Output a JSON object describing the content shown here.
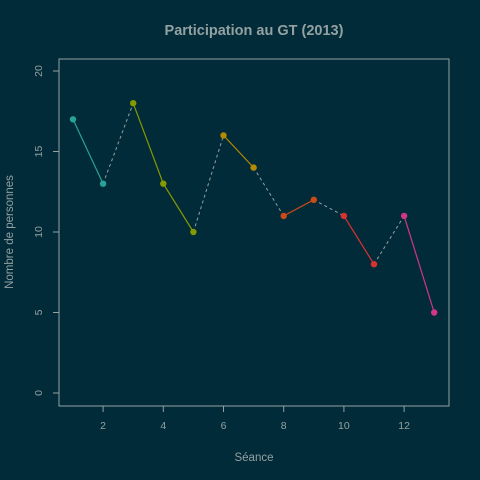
{
  "chart_data": {
    "type": "line",
    "title": "Participation au GT (2013)",
    "xlabel": "Séance",
    "ylabel": "Nombre de personnes",
    "xlim": [
      0.5,
      13.5
    ],
    "ylim": [
      0,
      21
    ],
    "xticks": [
      2,
      4,
      6,
      8,
      10,
      12
    ],
    "yticks": [
      0,
      5,
      10,
      15,
      20
    ],
    "x": [
      1,
      2,
      3,
      4,
      5,
      6,
      7,
      8,
      9,
      10,
      11,
      12,
      13
    ],
    "series": [
      {
        "x": [
          1,
          2
        ],
        "values": [
          17,
          13
        ],
        "color": "#2aa198"
      },
      {
        "x": [
          3,
          4,
          5
        ],
        "values": [
          18,
          13,
          10
        ],
        "color": "#859900"
      },
      {
        "x": [
          6,
          7
        ],
        "values": [
          16,
          14
        ],
        "color": "#b58900"
      },
      {
        "x": [
          8,
          9
        ],
        "values": [
          11,
          12
        ],
        "color": "#cb4b16"
      },
      {
        "x": [
          10,
          11
        ],
        "values": [
          11,
          8
        ],
        "color": "#dc322f"
      },
      {
        "x": [
          12,
          13
        ],
        "values": [
          11,
          5
        ],
        "color": "#d33682"
      }
    ],
    "connectors": "dashed",
    "grid": false,
    "legend": "none"
  },
  "colors": {
    "background": "#022b3a",
    "foreground": "#93a1a1"
  }
}
